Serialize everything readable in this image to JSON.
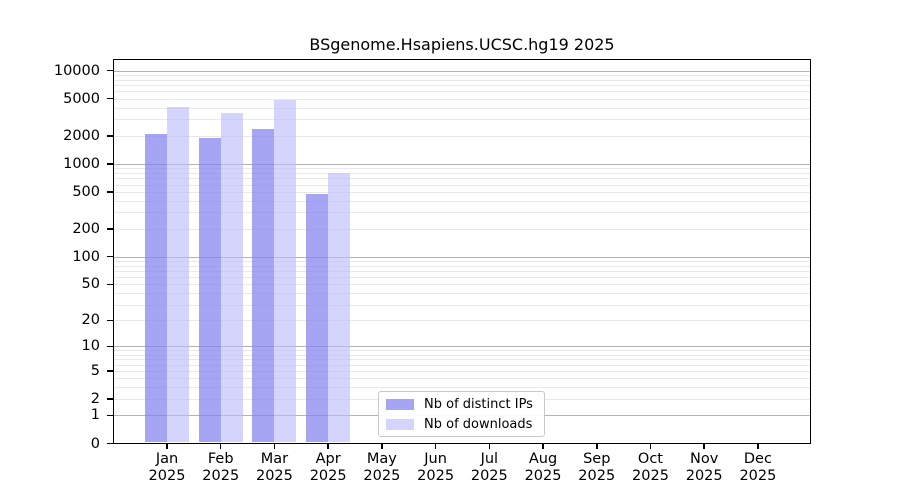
{
  "title": "BSgenome.Hsapiens.UCSC.hg19 2025",
  "chart_data": {
    "type": "bar",
    "title": "BSgenome.Hsapiens.UCSC.hg19 2025",
    "yscale": "log10(value+1)",
    "ylim": [
      0,
      13000
    ],
    "y_ticks": [
      0,
      1,
      2,
      5,
      10,
      20,
      50,
      100,
      200,
      500,
      1000,
      2000,
      5000,
      10000
    ],
    "grid": "horizontal, log majors (powers of 10) and minors (2-9 per decade)",
    "categories": [
      "Jan 2025",
      "Feb 2025",
      "Mar 2025",
      "Apr 2025",
      "May 2025",
      "Jun 2025",
      "Jul 2025",
      "Aug 2025",
      "Sep 2025",
      "Oct 2025",
      "Nov 2025",
      "Dec 2025"
    ],
    "series": [
      {
        "name": "Nb of distinct IPs",
        "color": "#8282ee",
        "alpha": 0.72,
        "values": [
          2100,
          1900,
          2380,
          470,
          null,
          null,
          null,
          null,
          null,
          null,
          null,
          null
        ]
      },
      {
        "name": "Nb of downloads",
        "color": "#b9b9fc",
        "alpha": 0.62,
        "values": [
          4100,
          3500,
          4800,
          800,
          null,
          null,
          null,
          null,
          null,
          null,
          null,
          null
        ]
      }
    ],
    "legend_position": "bottom-center"
  }
}
